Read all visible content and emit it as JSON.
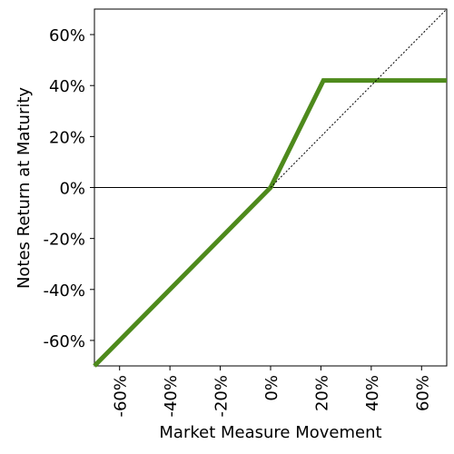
{
  "chart_data": {
    "type": "line",
    "xlabel": "Market Measure Movement",
    "ylabel": "Notes Return at Maturity",
    "series": [
      {
        "color": "#4e8a1c",
        "style": "solid",
        "x": [
          -70,
          0,
          21,
          70
        ],
        "values": [
          -70,
          0,
          42,
          42
        ]
      },
      {
        "color": "#000000",
        "style": "dotted",
        "x": [
          0,
          70
        ],
        "values": [
          0,
          70
        ]
      }
    ],
    "hlines": [
      0
    ],
    "xlim": [
      -70,
      70
    ],
    "ylim": [
      -70,
      70
    ],
    "xticks": [
      {
        "value": -60,
        "label": "-60%"
      },
      {
        "value": -40,
        "label": "-40%"
      },
      {
        "value": -20,
        "label": "-20%"
      },
      {
        "value": 0,
        "label": "0%"
      },
      {
        "value": 20,
        "label": "20%"
      },
      {
        "value": 40,
        "label": "40%"
      },
      {
        "value": 60,
        "label": "60%"
      }
    ],
    "yticks": [
      {
        "value": -60,
        "label": "-60%"
      },
      {
        "value": -40,
        "label": "-40%"
      },
      {
        "value": -20,
        "label": "-20%"
      },
      {
        "value": 0,
        "label": "0%"
      },
      {
        "value": 20,
        "label": "20%"
      },
      {
        "value": 40,
        "label": "40%"
      },
      {
        "value": 60,
        "label": "60%"
      }
    ]
  }
}
